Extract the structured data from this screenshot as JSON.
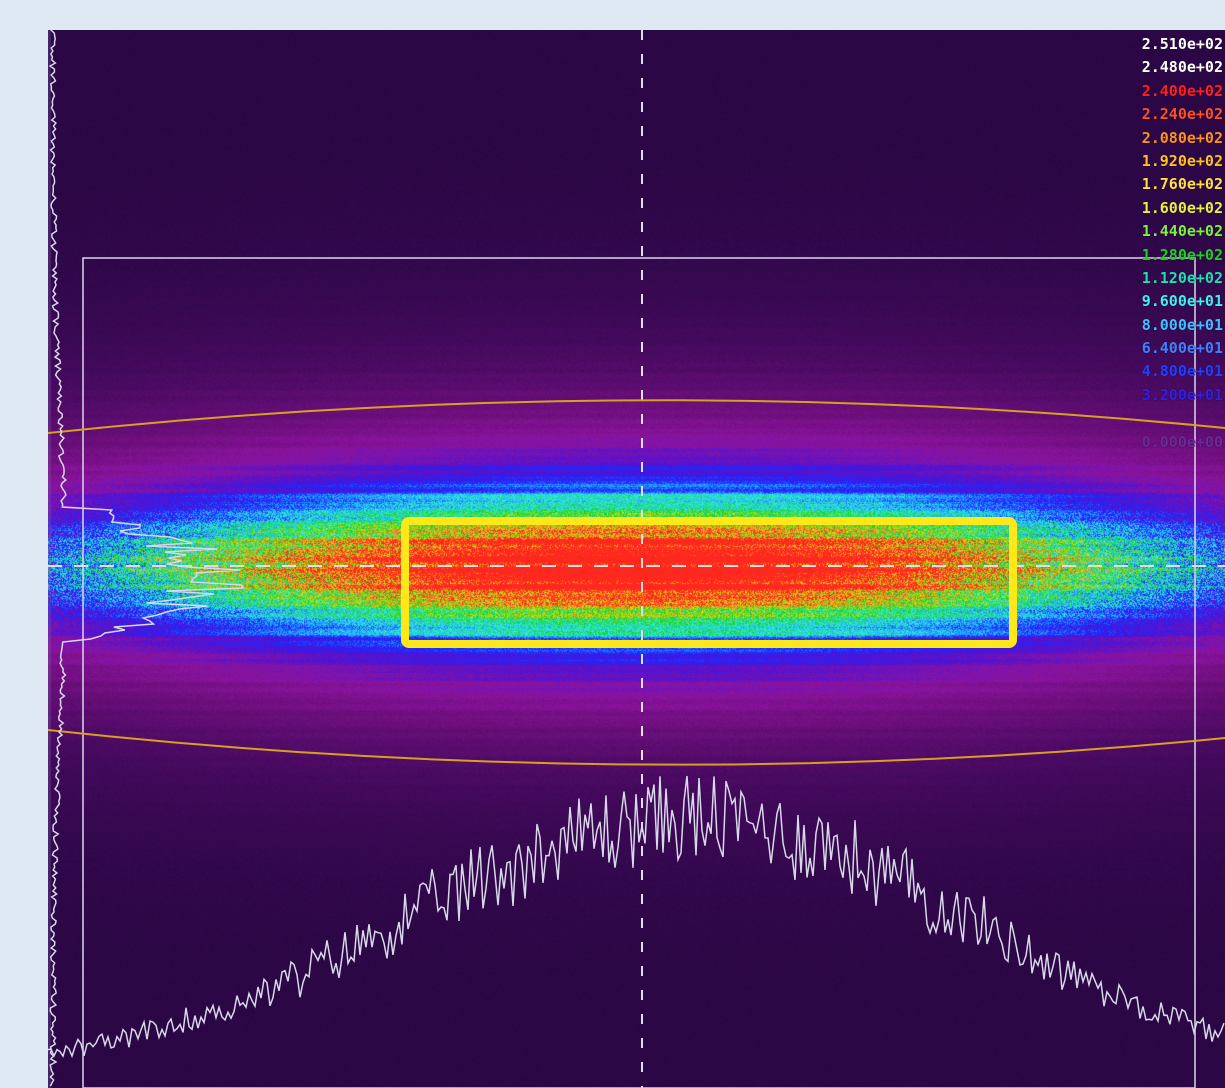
{
  "window": {
    "background": "#dfe9f3"
  },
  "image": {
    "background_color": "#2a0744",
    "palette": [
      "#2a0744",
      "#5a0a78",
      "#8a0fa0",
      "#4a10d0",
      "#2030ff",
      "#20b8ff",
      "#30f0d0",
      "#10d020",
      "#c0e010",
      "#f0e020",
      "#ff9020",
      "#ff3020",
      "#ffffff"
    ]
  },
  "overlays": {
    "roi_color": "#ffe81a",
    "ellipse_color": "#d8a020",
    "crosshair_color": "#e0e0e0",
    "frame_color": "#d8d8e8",
    "profile_color": "#d8d8e8"
  },
  "colorbar": {
    "labels": [
      {
        "text": "2.510e+02",
        "color": "#ffffff"
      },
      {
        "text": "2.480e+02",
        "color": "#ffffff"
      },
      {
        "text": "2.400e+02",
        "color": "#ff2020"
      },
      {
        "text": "2.240e+02",
        "color": "#ff5020"
      },
      {
        "text": "2.080e+02",
        "color": "#ff9020"
      },
      {
        "text": "1.920e+02",
        "color": "#ffc020"
      },
      {
        "text": "1.760e+02",
        "color": "#ffe040"
      },
      {
        "text": "1.600e+02",
        "color": "#e8f040"
      },
      {
        "text": "1.440e+02",
        "color": "#80f040"
      },
      {
        "text": "1.280e+02",
        "color": "#20d020"
      },
      {
        "text": "1.120e+02",
        "color": "#20e0b0"
      },
      {
        "text": "9.600e+01",
        "color": "#40f0f0"
      },
      {
        "text": "8.000e+01",
        "color": "#40c0ff"
      },
      {
        "text": "6.400e+01",
        "color": "#4080ff"
      },
      {
        "text": "4.800e+01",
        "color": "#2040ff"
      },
      {
        "text": "3.200e+01",
        "color": "#3020e0"
      },
      {
        "text": "",
        "color": "#2a0744"
      },
      {
        "text": "0.000e+00",
        "color": "#6a2a98"
      }
    ]
  }
}
